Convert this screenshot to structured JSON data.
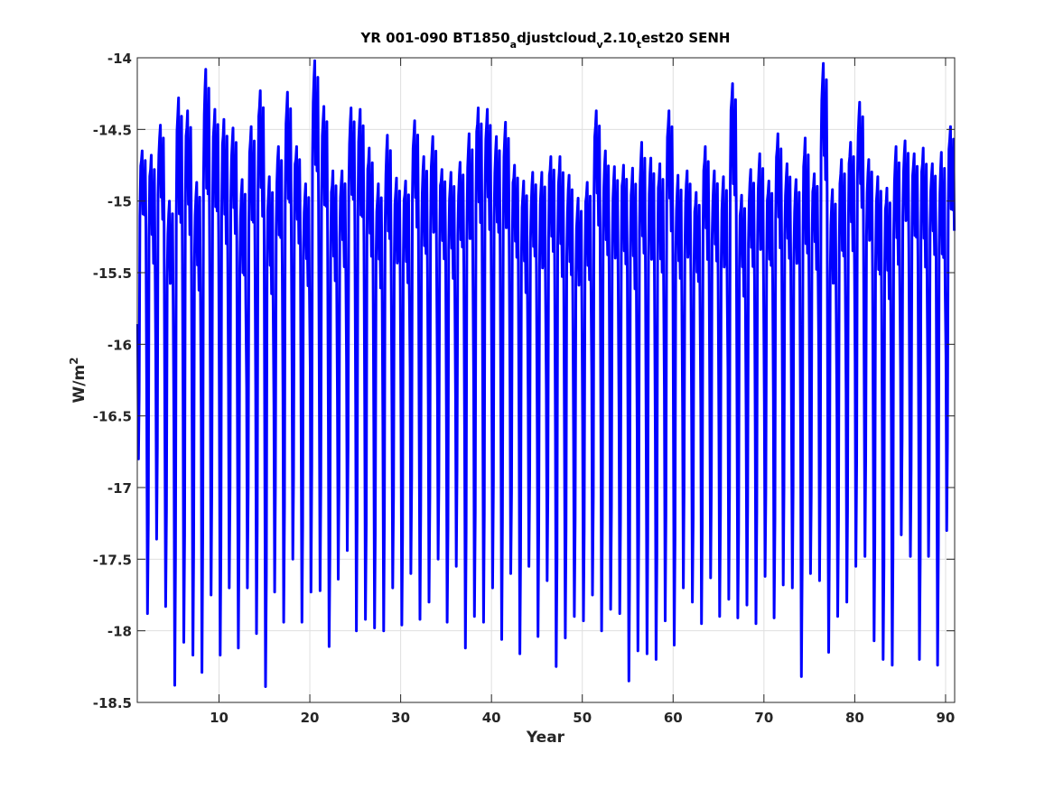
{
  "chart_data": {
    "type": "line",
    "title": {
      "parts": [
        {
          "text": "YR 001-090 BT1850",
          "shift": "none"
        },
        {
          "text": "a",
          "shift": "sub"
        },
        {
          "text": "djustcloud",
          "shift": "none"
        },
        {
          "text": "v",
          "shift": "sub"
        },
        {
          "text": "2.10",
          "shift": "none"
        },
        {
          "text": "t",
          "shift": "sub"
        },
        {
          "text": "est20 SENH",
          "shift": "none"
        }
      ]
    },
    "xlabel": "Year",
    "ylabel": {
      "base": "W/m",
      "sup": "2"
    },
    "xlim": [
      1,
      91
    ],
    "ylim": [
      -18.5,
      -14
    ],
    "xticks": [
      10,
      20,
      30,
      40,
      50,
      60,
      70,
      80,
      90
    ],
    "yticks": [
      -14,
      -14.5,
      -15,
      -15.5,
      -16,
      -16.5,
      -17,
      -17.5,
      -18,
      -18.5
    ],
    "xtick_labels": [
      "10",
      "20",
      "30",
      "40",
      "50",
      "60",
      "70",
      "80",
      "90"
    ],
    "ytick_labels": [
      "-14",
      "-14.5",
      "-15",
      "-15.5",
      "-16",
      "-16.5",
      "-17",
      "-17.5",
      "-18",
      "-18.5"
    ],
    "grid": true,
    "series": [
      {
        "color": "#0000ff",
        "line_width": 3,
        "sampling": "monthly",
        "annual_cycle": [
          -16.4,
          -17.8,
          -17.1,
          -15.2,
          -14.8,
          -14.7,
          -14.6,
          -15.2,
          -14.9,
          -15.3,
          -14.7,
          -15.4
        ],
        "annual_max": [
          -14.65,
          -14.68,
          -14.47,
          -15.0,
          -14.28,
          -14.37,
          -14.87,
          -14.08,
          -14.36,
          -14.43,
          -14.49,
          -14.85,
          -14.48,
          -14.23,
          -14.83,
          -14.62,
          -14.24,
          -14.62,
          -14.88,
          -14.02,
          -14.34,
          -14.79,
          -14.79,
          -14.35,
          -14.36,
          -14.63,
          -14.88,
          -14.54,
          -14.84,
          -14.86,
          -14.44,
          -14.69,
          -14.55,
          -14.78,
          -14.8,
          -14.73,
          -14.53,
          -14.35,
          -14.36,
          -14.55,
          -14.45,
          -14.75,
          -14.86,
          -14.8,
          -14.8,
          -14.69,
          -14.69,
          -14.82,
          -14.98,
          -14.87,
          -14.37,
          -14.65,
          -14.76,
          -14.75,
          -14.77,
          -14.59,
          -14.7,
          -14.74,
          -14.37,
          -14.82,
          -14.79,
          -14.94,
          -14.62,
          -14.79,
          -14.83,
          -14.18,
          -14.96,
          -14.78,
          -14.67,
          -14.86,
          -14.53,
          -14.74,
          -14.85,
          -14.56,
          -14.81,
          -14.04,
          -14.92,
          -14.71,
          -14.59,
          -14.31,
          -14.71,
          -14.83,
          -14.91,
          -14.62,
          -14.58,
          -14.67,
          -14.63,
          -14.74,
          -14.66,
          -14.48
        ],
        "annual_min": [
          -16.8,
          -17.88,
          -17.36,
          -17.83,
          -18.38,
          -18.08,
          -18.17,
          -18.29,
          -17.75,
          -18.17,
          -17.7,
          -18.12,
          -17.7,
          -18.02,
          -18.39,
          -17.73,
          -17.94,
          -17.5,
          -17.94,
          -17.73,
          -17.72,
          -18.11,
          -17.64,
          -17.44,
          -18.0,
          -17.92,
          -17.98,
          -18.0,
          -17.7,
          -17.96,
          -17.6,
          -17.92,
          -17.8,
          -17.5,
          -17.94,
          -17.55,
          -18.12,
          -17.9,
          -17.94,
          -17.7,
          -18.06,
          -17.6,
          -18.16,
          -17.55,
          -18.04,
          -17.65,
          -18.25,
          -18.05,
          -17.9,
          -17.93,
          -17.75,
          -18.0,
          -17.85,
          -17.88,
          -18.35,
          -18.14,
          -18.16,
          -18.2,
          -17.93,
          -18.1,
          -17.7,
          -17.8,
          -17.95,
          -17.63,
          -17.9,
          -17.78,
          -17.91,
          -17.82,
          -17.95,
          -17.62,
          -17.91,
          -17.68,
          -17.7,
          -18.32,
          -17.6,
          -17.65,
          -18.15,
          -17.9,
          -17.8,
          -17.55,
          -17.48,
          -18.07,
          -18.2,
          -18.24,
          -17.33,
          -17.48,
          -18.2,
          -17.48,
          -18.24,
          -17.3
        ]
      }
    ]
  }
}
